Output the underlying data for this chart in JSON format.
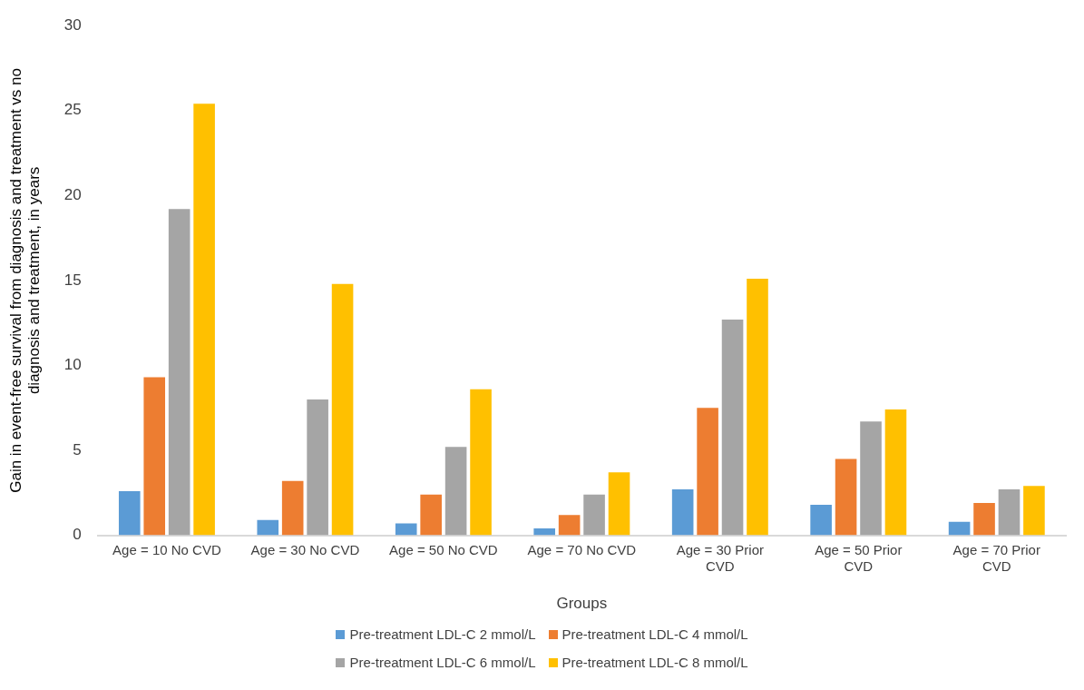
{
  "chart_data": {
    "type": "bar",
    "xlabel": "Groups",
    "ylabel": "Gain in event-free survival from diagnosis and treatment vs no diagnosis and treatment, in years",
    "categories": [
      "Age = 10 No CVD",
      "Age = 30 No CVD",
      "Age = 50 No CVD",
      "Age = 70 No CVD",
      "Age = 30 Prior CVD",
      "Age = 50 Prior CVD",
      "Age = 70 Prior CVD"
    ],
    "series": [
      {
        "name": "Pre-treatment LDL-C 2 mmol/L",
        "color": "#5b9bd5",
        "values": [
          2.6,
          0.9,
          0.7,
          0.4,
          2.7,
          1.8,
          0.8
        ]
      },
      {
        "name": "Pre-treatment LDL-C 4 mmol/L",
        "color": "#ed7d31",
        "values": [
          9.3,
          3.2,
          2.4,
          1.2,
          7.5,
          4.5,
          1.9
        ]
      },
      {
        "name": "Pre-treatment LDL-C 6 mmol/L",
        "color": "#a5a5a5",
        "values": [
          19.2,
          8.0,
          5.2,
          2.4,
          12.7,
          6.7,
          2.7
        ]
      },
      {
        "name": "Pre-treatment LDL-C 8 mmol/L",
        "color": "#ffc000",
        "values": [
          25.4,
          14.8,
          8.6,
          3.7,
          15.1,
          7.4,
          2.9
        ]
      }
    ],
    "ylim": [
      0,
      30
    ],
    "yticks": [
      0,
      5,
      10,
      15,
      20,
      25,
      30
    ],
    "grid": false,
    "legend": "bottom"
  }
}
